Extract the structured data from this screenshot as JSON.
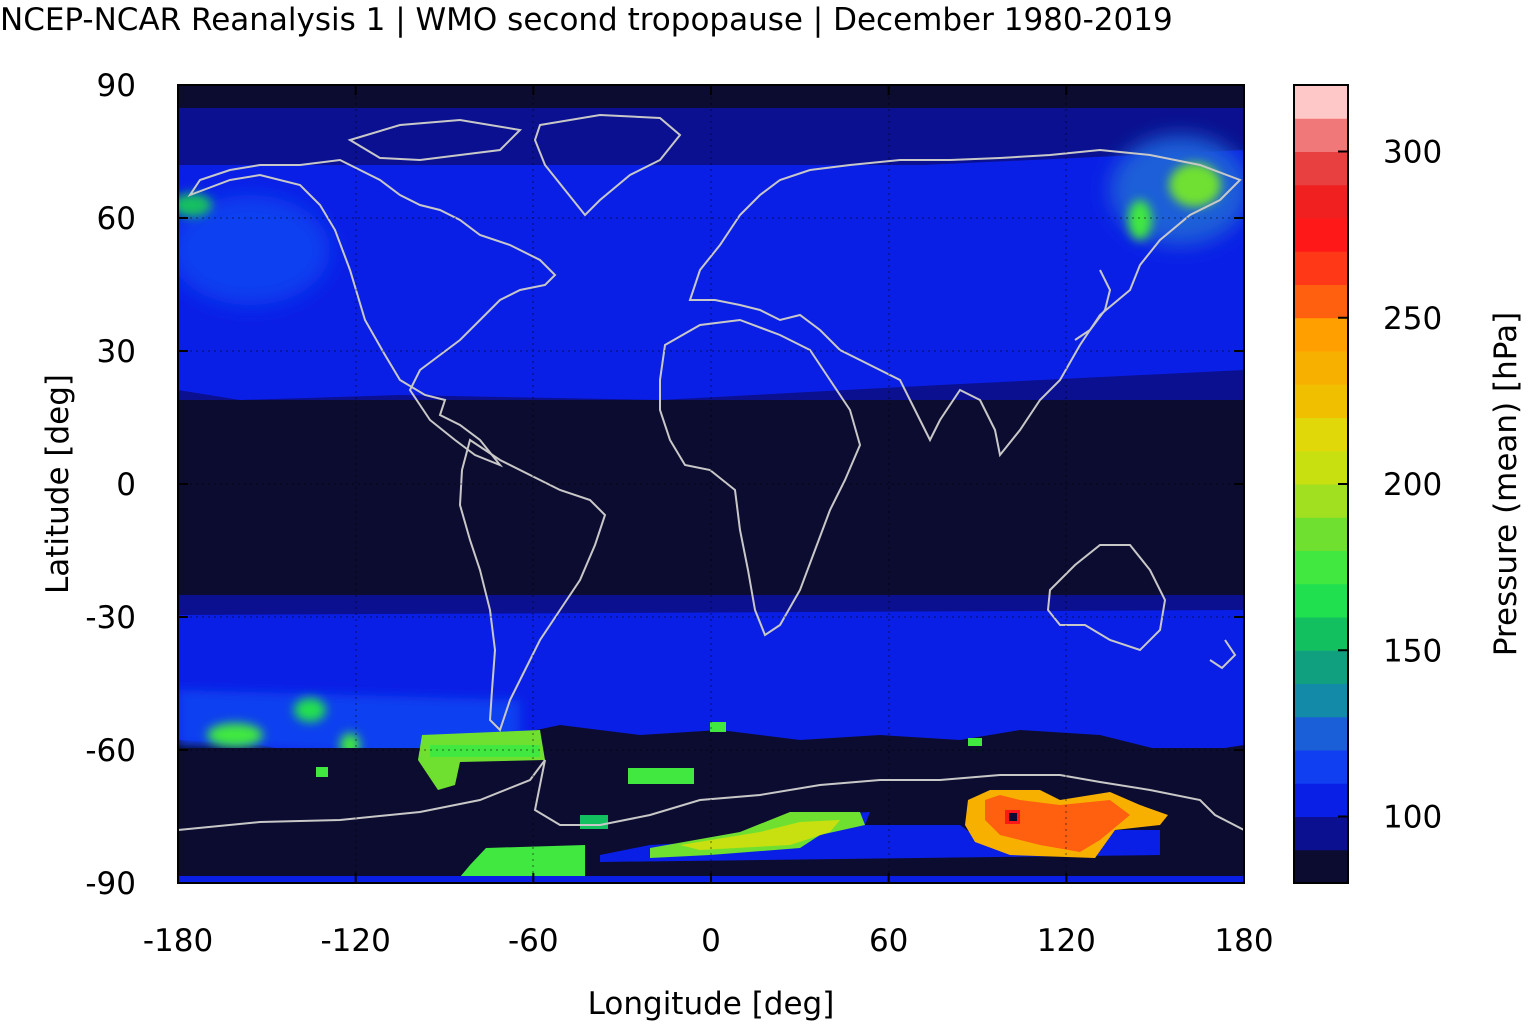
{
  "title": "NCEP-NCAR Reanalysis 1 | WMO second tropopause | December 1980-2019",
  "map": {
    "x_label": "Longitude [deg]",
    "y_label": "Latitude [deg]",
    "x_ticks": [
      "-180",
      "-120",
      "-60",
      "0",
      "60",
      "120",
      "180"
    ],
    "y_ticks": [
      "90",
      "60",
      "30",
      "0",
      "-30",
      "-60",
      "-90"
    ],
    "x_range": [
      -180,
      180
    ],
    "y_range": [
      -90,
      90
    ],
    "background_color": "#0c0c30",
    "coastline_color": "#c8c8c8"
  },
  "colorbar": {
    "label": "Pressure (mean) [hPa]",
    "ticks": [
      "100",
      "150",
      "200",
      "250",
      "300"
    ],
    "range": [
      80,
      320
    ],
    "colors": [
      "#0c0c30",
      "#0a108f",
      "#0a1fe6",
      "#0f3ff0",
      "#1a5fd8",
      "#128aa8",
      "#10a080",
      "#12c060",
      "#20e050",
      "#40e840",
      "#70e030",
      "#a0e020",
      "#c8e010",
      "#e0d808",
      "#f0c000",
      "#f8b000",
      "#ffa000",
      "#ff6010",
      "#ff3818",
      "#ff1818",
      "#f02020",
      "#e84040",
      "#f07878",
      "#ffc8c8"
    ]
  },
  "chart_data": {
    "type": "heatmap",
    "title": "NCEP-NCAR Reanalysis 1 | WMO second tropopause | December 1980-2019",
    "xlabel": "Longitude [deg]",
    "ylabel": "Latitude [deg]",
    "xlim": [
      -180,
      180
    ],
    "ylim": [
      -90,
      90
    ],
    "colorbar_label": "Pressure (mean) [hPa]",
    "colorbar_range": [
      80,
      320
    ],
    "regions": [
      {
        "lat": [
          25,
          65
        ],
        "lon": [
          -180,
          180
        ],
        "approx_hPa": 100
      },
      {
        "lat": [
          -60,
          -25
        ],
        "lon": [
          -180,
          180
        ],
        "approx_hPa": 100
      },
      {
        "lat": [
          -20,
          25
        ],
        "lon": [
          -180,
          180
        ],
        "approx_hPa": 85
      },
      {
        "lat": [
          -78,
          -72
        ],
        "lon": [
          88,
          148
        ],
        "approx_hPa": 260
      },
      {
        "lat": [
          -86,
          -76
        ],
        "lon": [
          -10,
          52
        ],
        "approx_hPa": 190
      },
      {
        "lat": [
          -66,
          -57
        ],
        "lon": [
          -95,
          -55
        ],
        "approx_hPa": 180
      },
      {
        "lat": [
          62,
          72
        ],
        "lon": [
          150,
          175
        ],
        "approx_hPa": 160
      }
    ]
  }
}
